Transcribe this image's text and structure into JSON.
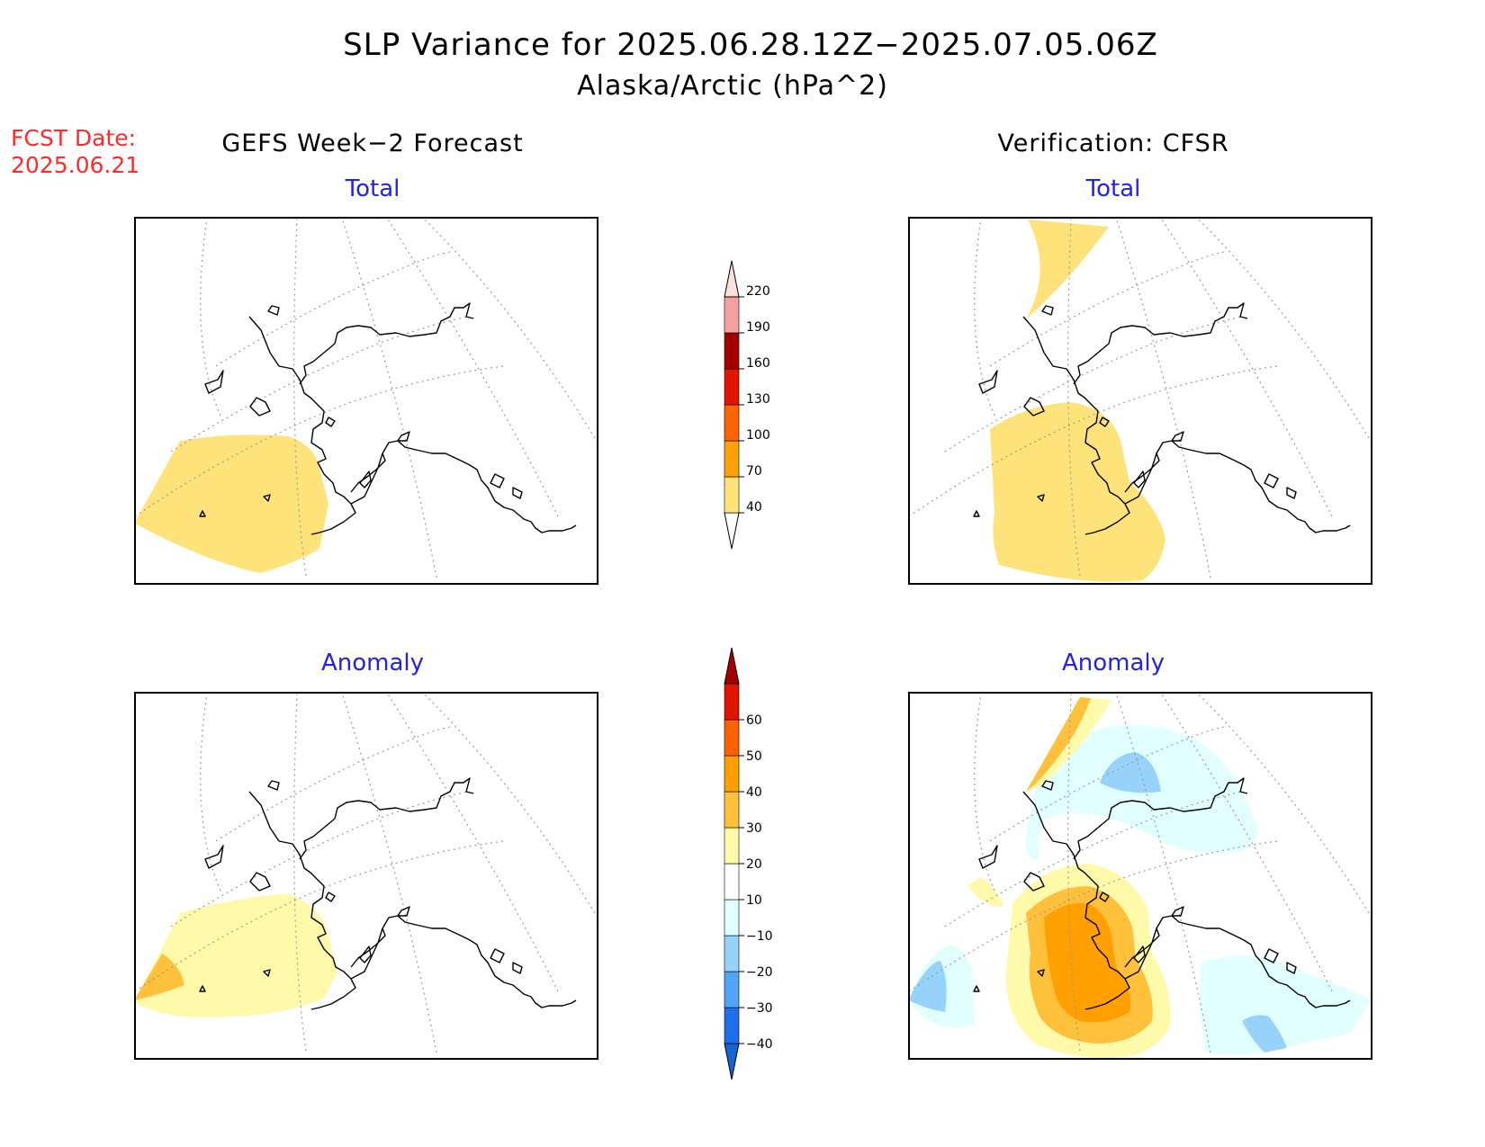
{
  "title": {
    "line1": "SLP Variance for 2025.06.28.12Z−2025.07.05.06Z",
    "line2": "Alaska/Arctic (hPa^2)"
  },
  "fcst_date": {
    "label": "FCST Date:",
    "value": "2025.06.21"
  },
  "columns": {
    "left": "GEFS Week−2 Forecast",
    "right": "Verification: CFSR"
  },
  "panels": {
    "total_label": "Total",
    "anomaly_label": "Anomaly"
  },
  "colorbars": {
    "total": {
      "ticks": [
        "40",
        "70",
        "100",
        "130",
        "160",
        "190",
        "220"
      ],
      "colors": [
        "#fee27a",
        "#fea10a",
        "#fe6400",
        "#e11500",
        "#a50000",
        "#f3a0a0",
        "#fde0dc"
      ]
    },
    "anomaly": {
      "ticks": [
        "−40",
        "−30",
        "−20",
        "−10",
        "10",
        "20",
        "30",
        "40",
        "50",
        "60"
      ],
      "colors": [
        "#1464d2",
        "#1e6eeb",
        "#50a5f5",
        "#96d2fa",
        "#e1ffff",
        "#ffffff",
        "#fffaaa",
        "#ffc03c",
        "#ffa000",
        "#ff6000",
        "#e11400",
        "#a50000"
      ]
    }
  },
  "colors": {
    "title_text": "#000000",
    "subtitle_blue": "#2323e8",
    "fcst_red": "#ff2a2a",
    "land_outline": "#000000",
    "grid": "#9a9a9a"
  }
}
